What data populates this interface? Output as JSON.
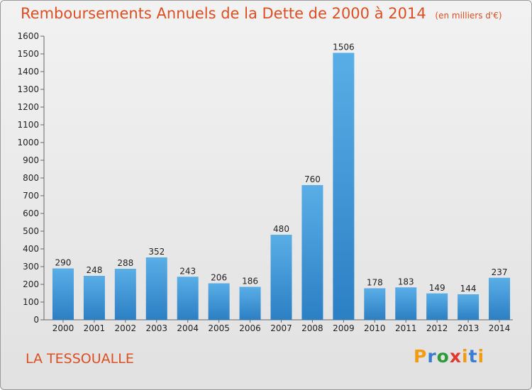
{
  "header": {
    "title": "Remboursements Annuels de la Dette de 2000 à 2014",
    "subtitle": "(en milliers d'€)"
  },
  "footer": {
    "place": "LA TESSOUALLE",
    "logo_text": "Proxiti"
  },
  "colors": {
    "title": "#dd4f22",
    "bar_top": "#5aaee6",
    "bar_bottom": "#2b7fc4",
    "logo_p": "#f39c12",
    "logo_r": "#3a7dd1",
    "logo_o": "#2e9b3a",
    "logo_x": "#e03a2f",
    "logo_i": "#f39c12",
    "logo_t": "#3a7dd1"
  },
  "chart_data": {
    "type": "bar",
    "title": "Remboursements Annuels de la Dette de 2000 à 2014",
    "subtitle": "(en milliers d'€)",
    "categories": [
      "2000",
      "2001",
      "2002",
      "2003",
      "2004",
      "2005",
      "2006",
      "2007",
      "2008",
      "2009",
      "2010",
      "2011",
      "2012",
      "2013",
      "2014"
    ],
    "values": [
      290,
      248,
      288,
      352,
      243,
      206,
      186,
      480,
      760,
      1506,
      178,
      183,
      149,
      144,
      237
    ],
    "ylim": [
      0,
      1600
    ],
    "yticks": [
      0,
      100,
      200,
      300,
      400,
      500,
      600,
      700,
      800,
      900,
      1000,
      1100,
      1200,
      1300,
      1400,
      1500,
      1600
    ],
    "grid": false,
    "xlabel": "",
    "ylabel": ""
  }
}
